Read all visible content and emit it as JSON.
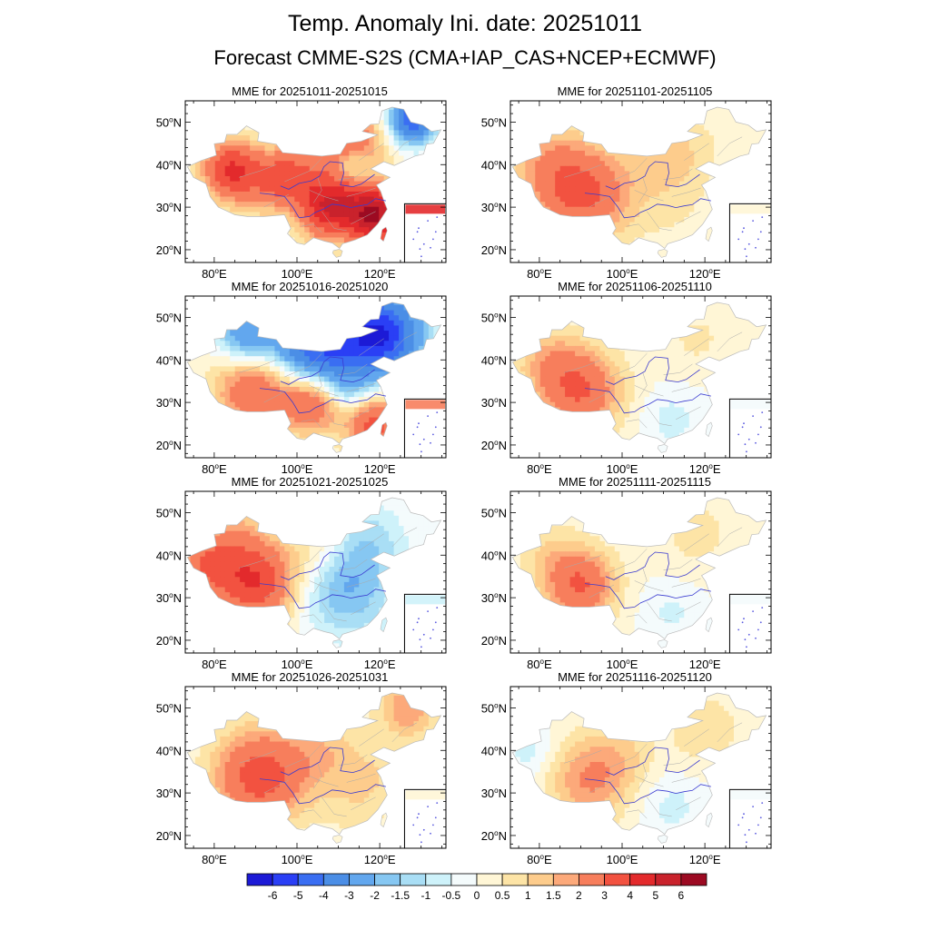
{
  "title": "Temp. Anomaly Ini. date: 20251011",
  "subtitle": "Forecast CMME-S2S (CMA+IAP_CAS+NCEP+ECMWF)",
  "panels": [
    {
      "title": "MME for 20251011-20251015",
      "pattern": "p1"
    },
    {
      "title": "MME for 20251101-20251105",
      "pattern": "p5"
    },
    {
      "title": "MME for 20251016-20251020",
      "pattern": "p2"
    },
    {
      "title": "MME for 20251106-20251110",
      "pattern": "p6"
    },
    {
      "title": "MME for 20251021-20251025",
      "pattern": "p3"
    },
    {
      "title": "MME for 20251111-20251115",
      "pattern": "p7"
    },
    {
      "title": "MME for 20251026-20251031",
      "pattern": "p4"
    },
    {
      "title": "MME for 20251116-20251120",
      "pattern": "p8"
    }
  ],
  "lat_ticks": [
    {
      "v": 50,
      "label": "50°N"
    },
    {
      "v": 40,
      "label": "40°N"
    },
    {
      "v": 30,
      "label": "30°N"
    },
    {
      "v": 20,
      "label": "20°N"
    }
  ],
  "lon_ticks": [
    {
      "v": 80,
      "label": "80°E"
    },
    {
      "v": 100,
      "label": "100°E"
    },
    {
      "v": 120,
      "label": "120°E"
    }
  ],
  "lon_range": [
    73,
    136
  ],
  "lat_range": [
    17,
    55
  ],
  "colorbar": {
    "labels": [
      "-6",
      "-5",
      "-4",
      "-3",
      "-2",
      "-1.5",
      "-1",
      "-0.5",
      "0",
      "0.5",
      "1",
      "1.5",
      "2",
      "3",
      "4",
      "5",
      "6"
    ],
    "colors": [
      "#1c1ad6",
      "#2a3ff5",
      "#3a6ef2",
      "#4b8ee6",
      "#62a7ee",
      "#86c7f2",
      "#a9def5",
      "#cef2fa",
      "#f4fbfc",
      "#fff6d6",
      "#fde4a6",
      "#fdcc8c",
      "#fca97a",
      "#f77e5c",
      "#f25240",
      "#e32a2c",
      "#c9222c",
      "#9c0a22"
    ]
  }
}
